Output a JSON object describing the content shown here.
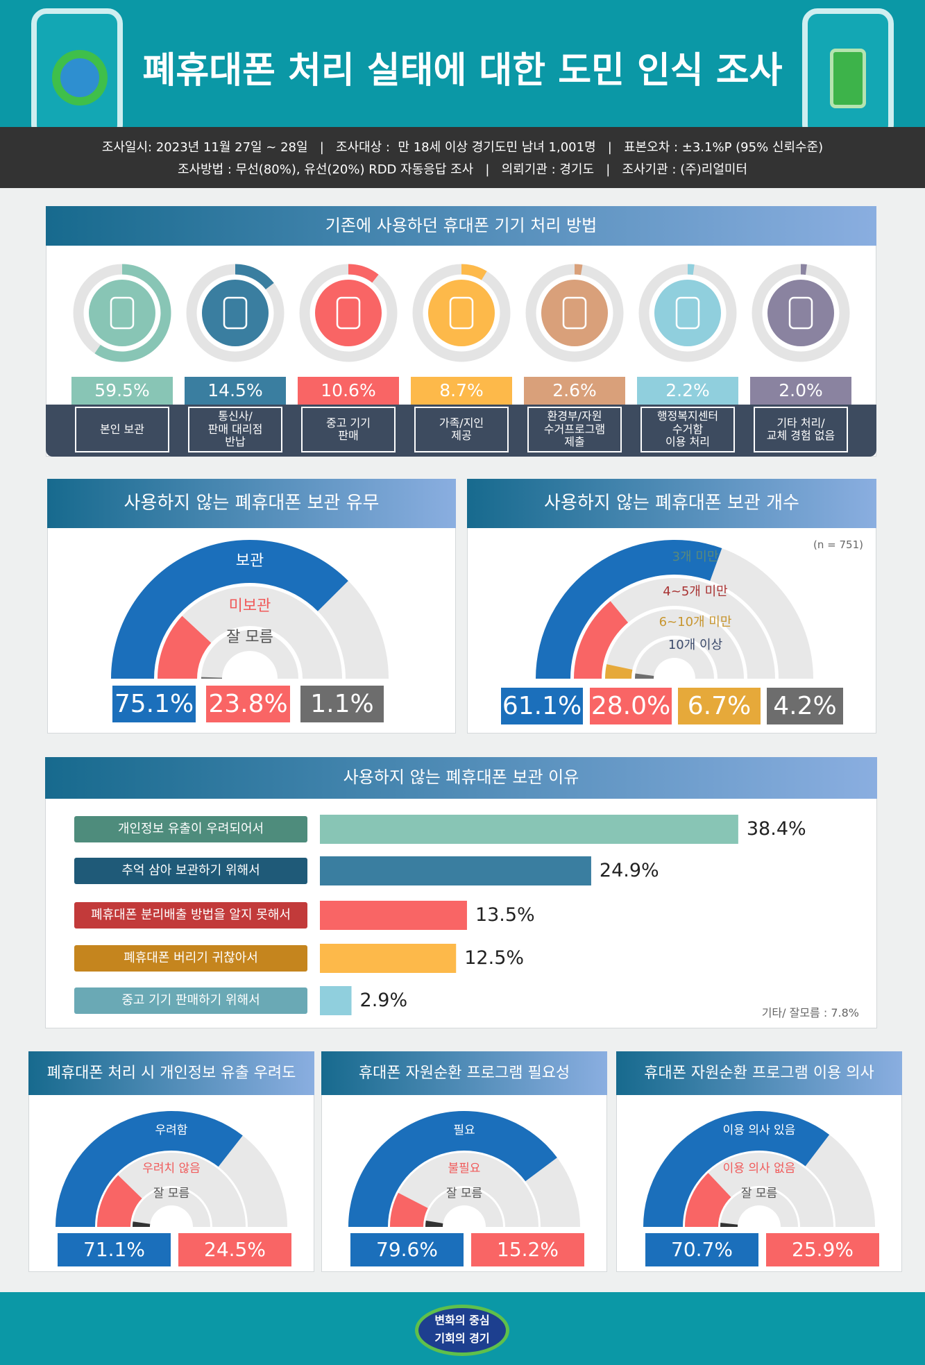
{
  "header": {
    "title": "폐휴대폰 처리 실태에 대한 도민 인식 조사",
    "info": [
      "조사일시: 2023년 11월 27일 ~ 28일   |   조사대상 :  만 18세 이상 경기도민 남녀 1,001명   |   표본오차 : ±3.1%P (95% 신뢰수준)",
      "조사방법 : 무선(80%), 유선(20%) RDD 자동응답 조사   |   의뢰기관 : 경기도   |   조사기관 : (주)리얼미터"
    ]
  },
  "chart_data": [
    {
      "type": "donut-row",
      "title": "기존에 사용하던 휴대폰 기기 처리 방법",
      "categories": [
        "본인 보관",
        "통신사/\n판매 대리점\n반납",
        "중고 기기\n판매",
        "가족/지인\n제공",
        "환경부/자원\n수거프로그램\n제출",
        "행정복지센터\n수거함\n이용 처리",
        "기타 처리/\n교체 경험 없음"
      ],
      "values": [
        59.5,
        14.5,
        10.6,
        8.7,
        2.6,
        2.2,
        2.0
      ],
      "value_labels": [
        "59.5%",
        "14.5%",
        "10.6%",
        "8.7%",
        "2.6%",
        "2.2%",
        "2.0%"
      ],
      "colors": [
        "#88c5b5",
        "#3a7ea0",
        "#f96565",
        "#fdb94a",
        "#d9a07a",
        "#90cfdd",
        "#8a83a0"
      ]
    },
    {
      "type": "gauge",
      "title": "사용하지 않는 폐휴대폰 보관 유무",
      "categories": [
        "보관",
        "미보관",
        "잘 모름"
      ],
      "values": [
        75.1,
        23.8,
        1.1
      ],
      "value_labels": [
        "75.1%",
        "23.8%",
        "1.1%"
      ],
      "colors": [
        "#1b6fbb",
        "#f96565",
        "#6d6d6d"
      ],
      "label_colors": [
        "#ffffff",
        "#f05a5a",
        "#555555"
      ]
    },
    {
      "type": "gauge",
      "title": "사용하지 않는 폐휴대폰 보관 개수",
      "note": "(n = 751)",
      "categories": [
        "3개 미만",
        "4~5개 미만",
        "6~10개 미만",
        "10개 이상"
      ],
      "values": [
        61.1,
        28.0,
        6.7,
        4.2
      ],
      "value_labels": [
        "61.1%",
        "28.0%",
        "6.7%",
        "4.2%"
      ],
      "colors": [
        "#1b6fbb",
        "#f96565",
        "#e6a93a",
        "#6d6d6d"
      ],
      "label_colors": [
        "#5b8a7a",
        "#a83232",
        "#c7952e",
        "#3b4a6b"
      ]
    },
    {
      "type": "bar",
      "title": "사용하지 않는 폐휴대폰 보관 이유",
      "categories": [
        "개인정보 유출이 우려되어서",
        "추억 삼아 보관하기 위해서",
        "폐휴대폰 분리배출 방법을 알지 못해서",
        "폐휴대폰 버리기 귀찮아서",
        "중고 기기 판매하기 위해서"
      ],
      "values": [
        38.4,
        24.9,
        13.5,
        12.5,
        2.9
      ],
      "value_labels": [
        "38.4%",
        "24.9%",
        "13.5%",
        "12.5%",
        "2.9%"
      ],
      "colors": [
        "#88c5b5",
        "#3a7ea0",
        "#f96565",
        "#fdb94a",
        "#90cfdd"
      ],
      "label_colors": [
        "#4e8c7c",
        "#1f5a78",
        "#c23a3a",
        "#c5851e",
        "#6aa9b5"
      ],
      "note": "기타/ 잘모름 : 7.8%"
    },
    {
      "type": "gauge",
      "title": "폐휴대폰 처리 시 개인정보 유출 우려도",
      "categories": [
        "우려함",
        "우려치 않음",
        "잘 모름"
      ],
      "values": [
        71.1,
        24.5,
        4.4
      ],
      "value_labels": [
        "71.1%",
        "24.5%",
        null
      ],
      "colors": [
        "#1b6fbb",
        "#f96565",
        "#333333"
      ],
      "label_colors": [
        "#ffffff",
        "#f05a5a",
        "#555555"
      ]
    },
    {
      "type": "gauge",
      "title": "휴대폰 자원순환 프로그램 필요성",
      "categories": [
        "필요",
        "불필요",
        "잘 모름"
      ],
      "values": [
        79.6,
        15.2,
        5.2
      ],
      "value_labels": [
        "79.6%",
        "15.2%",
        null
      ],
      "colors": [
        "#1b6fbb",
        "#f96565",
        "#333333"
      ],
      "label_colors": [
        "#ffffff",
        "#f05a5a",
        "#555555"
      ]
    },
    {
      "type": "gauge",
      "title": "휴대폰 자원순환 프로그램 이용 의사",
      "categories": [
        "이용 의사 있음",
        "이용 의사 없음",
        "잘 모름"
      ],
      "values": [
        70.7,
        25.9,
        3.4
      ],
      "value_labels": [
        "70.7%",
        "25.9%",
        null
      ],
      "colors": [
        "#1b6fbb",
        "#f96565",
        "#333333"
      ],
      "label_colors": [
        "#ffffff",
        "#f05a5a",
        "#555555"
      ]
    }
  ],
  "footer": {
    "logo": [
      "변화의 중심",
      "기회의 경기"
    ]
  }
}
